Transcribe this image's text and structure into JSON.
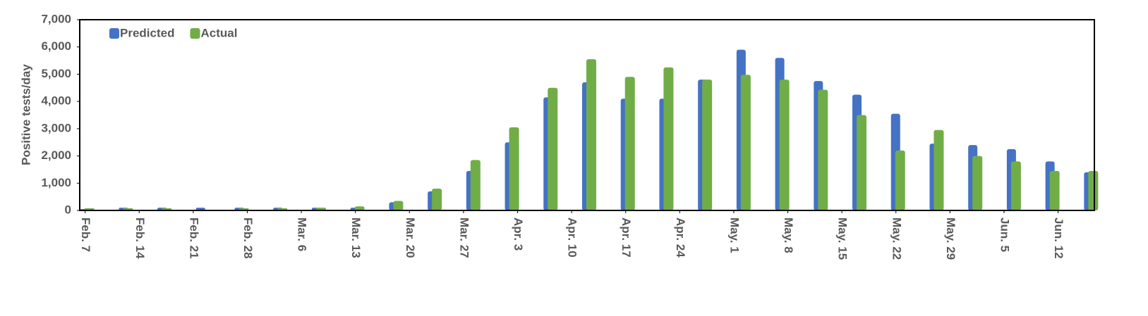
{
  "chart_data": {
    "type": "bar",
    "y_label": "Positive tests/day",
    "x": [
      0,
      5,
      10,
      15,
      20,
      25,
      30,
      35,
      40,
      45,
      50,
      55,
      60,
      65,
      70,
      75,
      80,
      85,
      90,
      95,
      100,
      105,
      110,
      115,
      120,
      125,
      130
    ],
    "xlim": [
      -0.7,
      130.7
    ],
    "xticks": [
      {
        "value": 0,
        "label": "Feb. 7"
      },
      {
        "value": 7,
        "label": "Feb. 14"
      },
      {
        "value": 14,
        "label": "Feb. 21"
      },
      {
        "value": 21,
        "label": "Feb. 28"
      },
      {
        "value": 28,
        "label": "Mar. 6"
      },
      {
        "value": 35,
        "label": "Mar. 13"
      },
      {
        "value": 42,
        "label": "Mar. 20"
      },
      {
        "value": 49,
        "label": "Mar. 27"
      },
      {
        "value": 56,
        "label": "Apr. 3"
      },
      {
        "value": 63,
        "label": "Apr. 10"
      },
      {
        "value": 70,
        "label": "Apr. 17"
      },
      {
        "value": 77,
        "label": "Apr. 24"
      },
      {
        "value": 84,
        "label": "May. 1"
      },
      {
        "value": 91,
        "label": "May. 8"
      },
      {
        "value": 98,
        "label": "May. 15"
      },
      {
        "value": 105,
        "label": "May. 22"
      },
      {
        "value": 112,
        "label": "May. 29"
      },
      {
        "value": 119,
        "label": "Jun. 5"
      },
      {
        "value": 126,
        "label": "Jun. 12"
      }
    ],
    "ylim": [
      0,
      7000
    ],
    "yticks": [
      0,
      {
        "value": 1000,
        "label": "1,000"
      },
      {
        "value": 2000,
        "label": "2,000"
      },
      {
        "value": 3000,
        "label": "3,000"
      },
      {
        "value": 4000,
        "label": "4,000"
      },
      {
        "value": 5000,
        "label": "5,000"
      },
      {
        "value": 6000,
        "label": "6,000"
      },
      {
        "value": 7000,
        "label": "7,000"
      }
    ],
    "legend": "upper left",
    "series": [
      {
        "name": "Predicted",
        "color": "#4472c4",
        "values": [
          50,
          100,
          100,
          100,
          100,
          100,
          100,
          100,
          300,
          700,
          1450,
          2500,
          4150,
          4700,
          4100,
          4100,
          4800,
          5900,
          5600,
          4750,
          4250,
          3550,
          2450,
          2400,
          2250,
          1800,
          1400
        ]
      },
      {
        "name": "Actual",
        "color": "#70ad47",
        "values": [
          80,
          80,
          80,
          20,
          80,
          80,
          100,
          150,
          350,
          800,
          1850,
          3050,
          4500,
          5550,
          4900,
          5250,
          4800,
          4980,
          4800,
          4430,
          3500,
          2200,
          2950,
          2000,
          1800,
          1450,
          1450
        ]
      }
    ]
  }
}
